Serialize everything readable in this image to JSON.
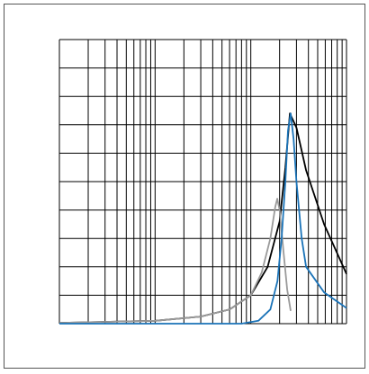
{
  "chart_data": {
    "type": "line",
    "xscale": "log",
    "grid": true,
    "show_tick_labels": false,
    "xlim": [
      1,
      1000
    ],
    "ylim": [
      0,
      10
    ],
    "xticks": [
      1,
      2,
      3,
      4,
      5,
      6,
      7,
      8,
      9,
      10,
      20,
      30,
      40,
      50,
      60,
      70,
      80,
      90,
      100,
      200,
      300,
      400,
      500,
      600,
      700,
      800,
      900,
      1000
    ],
    "yticks": [
      0,
      1,
      2,
      3,
      4,
      5,
      6,
      7,
      8,
      9,
      10
    ],
    "series": [
      {
        "color": "#000000",
        "x": [
          1,
          10,
          30,
          60,
          100,
          150,
          200,
          230,
          256,
          300,
          378,
          583,
          1000
        ],
        "values": [
          0.03,
          0.1,
          0.25,
          0.5,
          1.0,
          2.0,
          3.6,
          5.5,
          7.4,
          6.9,
          5.4,
          3.5,
          1.75
        ]
      },
      {
        "color": "#9a9a9a",
        "x": [
          1,
          10,
          30,
          60,
          100,
          130,
          160,
          180,
          189,
          200,
          220,
          240,
          261
        ],
        "values": [
          0.03,
          0.1,
          0.25,
          0.5,
          1.0,
          1.8,
          3.0,
          4.1,
          4.4,
          4.0,
          2.5,
          1.2,
          0.45
        ]
      },
      {
        "color": "#1a73b8",
        "x": [
          1,
          80,
          120,
          160,
          190,
          210,
          230,
          245,
          261,
          280,
          300,
          340,
          378,
          583,
          1000
        ],
        "values": [
          0,
          0,
          0.1,
          0.5,
          1.5,
          3.0,
          5.0,
          6.8,
          7.4,
          6.5,
          5.0,
          3.0,
          2.0,
          1.1,
          0.55
        ]
      }
    ]
  }
}
